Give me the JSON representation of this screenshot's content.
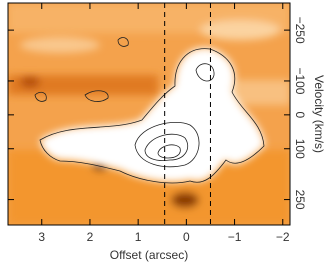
{
  "chart_data": {
    "type": "image",
    "xlabel": "Offset (arcsec)",
    "ylabel": "Velocity (km/s)",
    "xlim": [
      3.7,
      -2.15
    ],
    "xticks": [
      3,
      2,
      1,
      0,
      {
        "value": -1,
        "label": "−1"
      },
      {
        "value": -2,
        "label": "−2"
      }
    ],
    "ylim": [
      -330,
      325
    ],
    "yticks": [
      {
        "value": -250,
        "label": "−250"
      },
      {
        "value": -100,
        "label": "−100"
      },
      0,
      100,
      250
    ],
    "vlines": [
      0.45,
      -0.5
    ]
  }
}
